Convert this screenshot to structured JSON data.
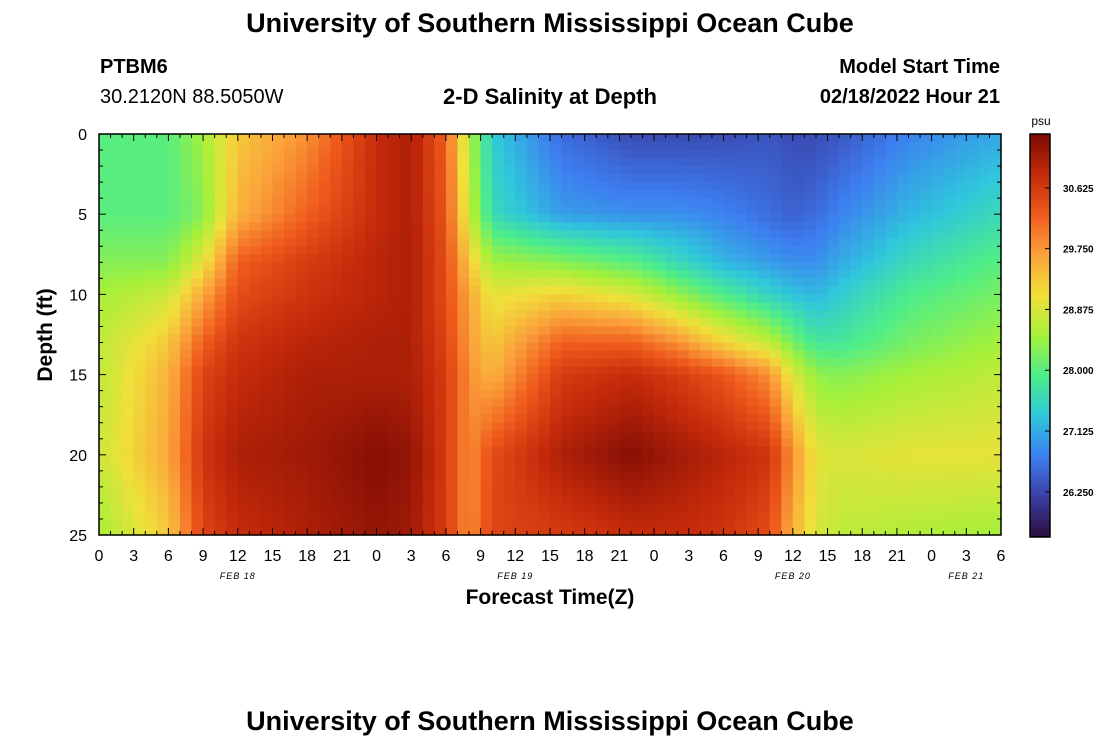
{
  "header": {
    "title": "University of Southern Mississippi Ocean Cube",
    "footer_title": "University of Southern Mississippi Ocean Cube",
    "station_id": "PTBM6",
    "station_coords": "30.2120N  88.5050W",
    "subtitle": "2-D Salinity at Depth",
    "model_start_label": "Model Start Time",
    "model_start_value": "02/18/2022 Hour 21"
  },
  "chart_data": {
    "type": "heatmap",
    "title": "2-D Salinity at Depth",
    "xlabel": "Forecast Time(Z)",
    "ylabel": "Depth (ft)",
    "colorbar_label": "psu",
    "xlim_hours": [
      0,
      78
    ],
    "ylim": [
      0,
      25
    ],
    "y_inverted": true,
    "x_tick_labels": [
      "0",
      "3",
      "6",
      "9",
      "12",
      "15",
      "18",
      "21",
      "0",
      "3",
      "6",
      "9",
      "12",
      "15",
      "18",
      "21",
      "0",
      "3",
      "6",
      "9",
      "12",
      "15",
      "18",
      "21",
      "0",
      "3",
      "6"
    ],
    "day_labels": [
      {
        "label": "FEB 18",
        "hour": 12
      },
      {
        "label": "FEB 19",
        "hour": 36
      },
      {
        "label": "FEB 20",
        "hour": 60
      },
      {
        "label": "FEB 21",
        "hour": 75
      }
    ],
    "y_ticks": [
      0,
      5,
      10,
      15,
      20,
      25
    ],
    "colorbar": {
      "min": 25.6,
      "max": 31.4,
      "ticks": [
        26.25,
        27.125,
        28.0,
        28.875,
        29.75,
        30.625
      ],
      "tick_labels": [
        "26.250",
        "27.125",
        "28.000",
        "28.875",
        "29.750",
        "30.625"
      ],
      "colors": [
        "#2a0f3c",
        "#3a3fa5",
        "#3d7ef0",
        "#2fc7dc",
        "#4ded8a",
        "#a5f03a",
        "#f0e03a",
        "#fba13a",
        "#ef5a1c",
        "#c42a0a",
        "#7a0a04"
      ]
    },
    "time_hours": [
      0,
      6,
      9,
      12,
      18,
      24,
      27,
      30,
      32,
      34,
      40,
      46,
      50,
      54,
      58,
      60,
      62,
      64,
      70,
      78
    ],
    "depths_ft": [
      0,
      5,
      8,
      10,
      13,
      15,
      20,
      25
    ],
    "salinity_psu": [
      [
        28.0,
        28.0,
        28.5,
        29.3,
        29.8,
        30.8,
        31.0,
        30.2,
        28.6,
        27.4,
        26.6,
        26.3,
        26.3,
        26.3,
        26.4,
        26.3,
        26.3,
        26.4,
        26.8,
        27.1
      ],
      [
        28.0,
        28.0,
        28.3,
        29.5,
        30.2,
        30.8,
        31.0,
        30.3,
        28.8,
        27.6,
        27.0,
        26.9,
        26.9,
        26.8,
        26.6,
        26.5,
        26.6,
        26.8,
        27.2,
        27.6
      ],
      [
        28.3,
        28.3,
        29.0,
        30.2,
        30.6,
        30.9,
        31.0,
        30.4,
        29.3,
        28.5,
        28.3,
        28.0,
        27.6,
        27.2,
        27.0,
        26.9,
        26.9,
        27.1,
        27.6,
        28.0
      ],
      [
        28.5,
        28.8,
        29.6,
        30.4,
        30.7,
        30.9,
        31.0,
        30.4,
        29.6,
        29.0,
        29.2,
        28.9,
        28.4,
        27.9,
        27.5,
        27.3,
        27.2,
        27.4,
        27.9,
        28.2
      ],
      [
        28.7,
        29.3,
        30.2,
        30.7,
        30.9,
        31.0,
        31.0,
        30.5,
        29.7,
        29.3,
        30.2,
        30.2,
        29.8,
        29.2,
        28.7,
        28.2,
        27.8,
        27.8,
        28.2,
        28.5
      ],
      [
        28.7,
        29.5,
        30.5,
        30.8,
        31.0,
        31.0,
        31.0,
        30.6,
        29.8,
        29.5,
        30.6,
        30.8,
        30.6,
        30.3,
        29.8,
        28.9,
        28.4,
        28.3,
        28.5,
        28.7
      ],
      [
        28.8,
        29.6,
        30.7,
        31.0,
        31.1,
        31.3,
        31.2,
        30.6,
        29.8,
        30.4,
        31.0,
        31.3,
        31.1,
        30.9,
        30.7,
        29.8,
        29.0,
        28.9,
        29.0,
        29.0
      ],
      [
        28.5,
        29.3,
        30.5,
        30.8,
        31.0,
        31.2,
        31.1,
        30.6,
        29.8,
        30.5,
        30.6,
        30.8,
        30.8,
        30.7,
        30.4,
        29.5,
        28.9,
        28.7,
        28.6,
        28.5
      ]
    ]
  }
}
